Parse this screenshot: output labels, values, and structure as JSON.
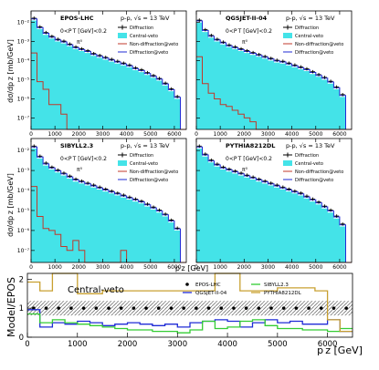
{
  "figure": {
    "ylabel_top": "dσ/dp z [mb/GeV]",
    "ylabel_ratio": "Model/EPOS",
    "xlabel_small": "p z [GeV]",
    "xlabel_ratio": "p z [GeV]"
  },
  "colors": {
    "fill": "#44e3e8",
    "diffraction": "#000000",
    "non_diffraction": "#c0392b",
    "diffraction_veto": "#1f2bd6",
    "epos": "#000000",
    "qgsjet": "#1f2bd6",
    "sibyll": "#33cc33",
    "pythia": "#c8a030",
    "band": "#9a9a9a"
  },
  "chart_data": [
    {
      "type": "area",
      "model": "EPOS-LHC",
      "process": "p-p, √s = 13 TeV",
      "cut": "0<P T [GeV]<0.2",
      "particle": "π⁰",
      "legend": [
        "Diffraction",
        "Central-veto",
        "Non-diffraction@veto",
        "Diffraction@veto"
      ],
      "x_ticks": [
        "0",
        "1000",
        "2000",
        "3000",
        "4000",
        "5000",
        "6000"
      ],
      "y_ticks": [
        "10⁻⁷",
        "10⁻⁶",
        "10⁻⁵",
        "10⁻⁴",
        "10⁻³",
        "10⁻²"
      ],
      "xlim": [
        0,
        6500
      ],
      "ylog": [
        -7.6,
        -1.4
      ],
      "x": [
        0,
        250,
        500,
        750,
        1000,
        1250,
        1500,
        1750,
        2000,
        2250,
        2500,
        2750,
        3000,
        3250,
        3500,
        3750,
        4000,
        4250,
        4500,
        4750,
        5000,
        5250,
        5500,
        5750,
        6000,
        6250
      ],
      "fill_log": [
        -1.9,
        -2.35,
        -2.65,
        -2.85,
        -3.0,
        -3.1,
        -3.25,
        -3.4,
        -3.5,
        -3.6,
        -3.75,
        -3.85,
        -3.95,
        -4.05,
        -4.15,
        -4.25,
        -4.35,
        -4.5,
        -4.6,
        -4.75,
        -4.9,
        -5.05,
        -5.3,
        -5.6,
        -6.0,
        -7.6
      ],
      "red_log": [
        -3.6,
        -5.1,
        -5.5,
        -6.3,
        -6.3,
        -6.8,
        -7.6,
        -7.6,
        -7.6,
        -7.6,
        -7.6,
        -7.6,
        -7.6,
        -7.6,
        -7.6,
        -7.6,
        -7.6,
        -7.6,
        -7.6,
        -7.6,
        -7.6,
        -7.6,
        -7.6,
        -7.6,
        -7.6,
        -7.6
      ]
    },
    {
      "type": "area",
      "model": "QGSJET-II-04",
      "process": "p-p, √s = 13 TeV",
      "cut": "0<P T [GeV]<0.2",
      "particle": "π⁰",
      "legend": [
        "Diffraction",
        "Central-veto",
        "Non-diffraction@veto",
        "Diffraction@veto"
      ],
      "x_ticks": [
        "0",
        "1000",
        "2000",
        "3000",
        "4000",
        "5000",
        "6000"
      ],
      "xlim": [
        0,
        6500
      ],
      "ylog": [
        -7.6,
        -1.4
      ],
      "x": [
        0,
        250,
        500,
        750,
        1000,
        1250,
        1500,
        1750,
        2000,
        2250,
        2500,
        2750,
        3000,
        3250,
        3500,
        3750,
        4000,
        4250,
        4500,
        4750,
        5000,
        5250,
        5500,
        5750,
        6000,
        6250
      ],
      "fill_log": [
        -2.0,
        -2.5,
        -2.8,
        -3.0,
        -3.15,
        -3.3,
        -3.4,
        -3.5,
        -3.6,
        -3.7,
        -3.8,
        -3.9,
        -4.0,
        -4.1,
        -4.15,
        -4.25,
        -4.35,
        -4.45,
        -4.55,
        -4.7,
        -4.85,
        -5.0,
        -5.2,
        -5.5,
        -5.9,
        -7.6
      ],
      "red_log": [
        -3.8,
        -5.2,
        -5.7,
        -6.0,
        -6.3,
        -6.4,
        -6.6,
        -6.8,
        -7.0,
        -7.2,
        -7.6,
        -7.6,
        -7.6,
        -7.6,
        -7.6,
        -7.6,
        -7.6,
        -7.6,
        -7.6,
        -7.6,
        -7.6,
        -7.6,
        -7.6,
        -7.6,
        -7.6,
        -7.6
      ]
    },
    {
      "type": "area",
      "model": "SIBYLL2.3",
      "process": "p-p, √s = 13 TeV",
      "cut": "0<P T [GeV]<0.2",
      "particle": "π⁰",
      "legend": [
        "Diffraction",
        "Central-veto",
        "Non-diffraction@veto",
        "Diffraction@veto"
      ],
      "x_ticks": [
        "0",
        "1000",
        "2000",
        "3000",
        "4000",
        "5000",
        "6000"
      ],
      "y_ticks": [
        "10⁻⁷",
        "10⁻⁶",
        "10⁻⁵",
        "10⁻⁴",
        "10⁻³",
        "10⁻²"
      ],
      "xlim": [
        0,
        6500
      ],
      "ylog": [
        -7.6,
        -1.4
      ],
      "x": [
        0,
        250,
        500,
        750,
        1000,
        1250,
        1500,
        1750,
        2000,
        2250,
        2500,
        2750,
        3000,
        3250,
        3500,
        3750,
        4000,
        4250,
        4500,
        4750,
        5000,
        5250,
        5500,
        5750,
        6000,
        6250
      ],
      "fill_log": [
        -1.9,
        -2.4,
        -2.75,
        -2.95,
        -3.1,
        -3.25,
        -3.4,
        -3.55,
        -3.65,
        -3.75,
        -3.85,
        -3.95,
        -4.05,
        -4.15,
        -4.25,
        -4.35,
        -4.45,
        -4.55,
        -4.65,
        -4.8,
        -4.95,
        -5.1,
        -5.3,
        -5.6,
        -6.0,
        -7.6
      ],
      "red_log": [
        -3.8,
        -5.3,
        -5.9,
        -6.0,
        -6.2,
        -6.8,
        -7.0,
        -6.5,
        -7.0,
        -7.6,
        -7.6,
        -7.6,
        -7.6,
        -7.6,
        -7.6,
        -7.0,
        -7.6,
        -7.6,
        -7.6,
        -7.6,
        -7.6,
        -7.6,
        -7.6,
        -7.6,
        -7.6,
        -7.6
      ]
    },
    {
      "type": "area",
      "model": "PYTHIA8212DL",
      "process": "p-p, √s = 13 TeV",
      "cut": "0<P T [GeV]<0.2",
      "particle": "π⁰",
      "legend": [
        "Diffraction",
        "Central-veto",
        "Non-diffraction@veto",
        "Diffraction@veto"
      ],
      "x_ticks": [
        "0",
        "1000",
        "2000",
        "3000",
        "4000",
        "5000",
        "6000"
      ],
      "xlim": [
        0,
        6500
      ],
      "ylog": [
        -7.6,
        -1.4
      ],
      "x": [
        0,
        250,
        500,
        750,
        1000,
        1250,
        1500,
        1750,
        2000,
        2250,
        2500,
        2750,
        3000,
        3250,
        3500,
        3750,
        4000,
        4250,
        4500,
        4750,
        5000,
        5250,
        5500,
        5750,
        6000,
        6250
      ],
      "fill_log": [
        -1.9,
        -2.3,
        -2.6,
        -2.8,
        -2.95,
        -3.05,
        -3.15,
        -3.25,
        -3.35,
        -3.45,
        -3.55,
        -3.65,
        -3.75,
        -3.85,
        -3.95,
        -4.05,
        -4.15,
        -4.25,
        -4.4,
        -4.55,
        -4.7,
        -4.9,
        -5.1,
        -5.4,
        -5.8,
        -7.6
      ],
      "red_log": [
        -7.6,
        -7.6,
        -7.6,
        -7.6,
        -7.6,
        -7.6,
        -7.6,
        -7.6,
        -7.6,
        -7.6,
        -7.6,
        -7.6,
        -7.6,
        -7.6,
        -7.6,
        -7.6,
        -7.6,
        -7.6,
        -7.6,
        -7.6,
        -7.6,
        -7.6,
        -7.6,
        -7.6,
        -7.6,
        -7.6
      ]
    },
    {
      "type": "line",
      "title": "Central-veto",
      "xlabel": "p z [GeV]",
      "ylabel": "Model/EPOS",
      "xlim": [
        0,
        6500
      ],
      "ylim": [
        0,
        2.2
      ],
      "x_ticks": [
        "0",
        "1000",
        "2000",
        "3000",
        "4000",
        "5000",
        "6000"
      ],
      "y_ticks": [
        "0",
        "1",
        "2"
      ],
      "legend": [
        "EPOS-LHC",
        "QGSJET-II-04",
        "SIBYLL2.3",
        "PYTHIA8212DL"
      ],
      "x": [
        0,
        250,
        500,
        750,
        1000,
        1250,
        1500,
        1750,
        2000,
        2250,
        2500,
        2750,
        3000,
        3250,
        3500,
        3750,
        4000,
        4250,
        4500,
        4750,
        5000,
        5250,
        5500,
        5750,
        6000,
        6250
      ],
      "series": [
        {
          "name": "EPOS-LHC",
          "values": [
            1,
            1,
            1,
            1,
            1,
            1,
            1,
            1,
            1,
            1,
            1,
            1,
            1,
            1,
            1,
            1,
            1,
            1,
            1,
            1,
            1,
            1,
            1,
            1,
            1,
            1
          ]
        },
        {
          "name": "QGSJET-II-04",
          "values": [
            0.95,
            0.35,
            0.5,
            0.45,
            0.55,
            0.5,
            0.4,
            0.45,
            0.5,
            0.45,
            0.4,
            0.45,
            0.35,
            0.5,
            0.55,
            0.6,
            0.55,
            0.35,
            0.5,
            0.6,
            0.5,
            0.55,
            0.45,
            0.45,
            0.6,
            0.2
          ]
        },
        {
          "name": "SIBYLL2.3",
          "values": [
            0.8,
            0.5,
            0.6,
            0.5,
            0.45,
            0.4,
            0.35,
            0.3,
            0.25,
            0.25,
            0.2,
            0.2,
            0.15,
            0.25,
            0.55,
            0.3,
            0.35,
            0.55,
            0.6,
            0.4,
            0.3,
            0.3,
            0.25,
            0.25,
            0.2,
            0.3
          ]
        },
        {
          "name": "PYTHIA8212DL",
          "values": [
            1.9,
            1.6,
            2.2,
            2.2,
            1.5,
            1.5,
            1.6,
            1.6,
            1.6,
            1.6,
            1.6,
            1.6,
            1.6,
            1.6,
            1.6,
            2.2,
            2.2,
            1.6,
            1.6,
            1.6,
            1.7,
            1.7,
            1.7,
            1.6,
            0.6,
            0.2
          ]
        }
      ]
    }
  ]
}
